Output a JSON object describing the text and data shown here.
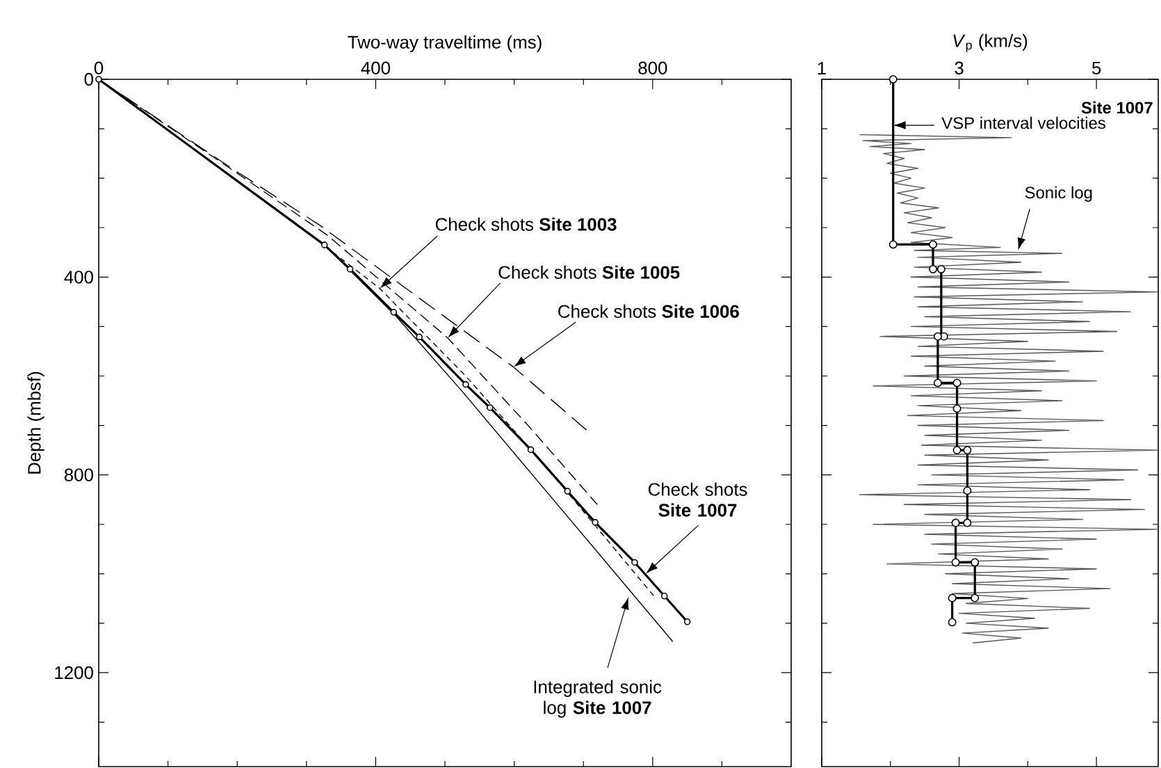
{
  "chart_data": [
    {
      "type": "line",
      "xlabel": "Two-way traveltime (ms)",
      "ylabel": "Depth (mbsf)",
      "xlim": [
        0,
        1000
      ],
      "ylim": [
        1390,
        0
      ],
      "xticks": [
        0,
        {
          "value": 100,
          "label": null
        },
        {
          "value": 200,
          "label": null
        },
        {
          "value": 300,
          "label": null
        },
        400,
        {
          "value": 500,
          "label": null
        },
        {
          "value": 600,
          "label": null
        },
        {
          "value": 700,
          "label": null
        },
        800,
        {
          "value": 900,
          "label": null
        }
      ],
      "yticks": [
        0,
        {
          "value": 100,
          "label": null
        },
        {
          "value": 200,
          "label": null
        },
        {
          "value": 300,
          "label": null
        },
        400,
        {
          "value": 500,
          "label": null
        },
        {
          "value": 600,
          "label": null
        },
        {
          "value": 700,
          "label": null
        },
        800,
        {
          "value": 900,
          "label": null
        },
        {
          "value": 1000,
          "label": null
        },
        {
          "value": 1100,
          "label": null
        },
        1200,
        {
          "value": 1300,
          "label": null
        }
      ],
      "series": [
        {
          "color": "#000000",
          "line_style": "dashed",
          "x": [
            0,
            320,
            406,
            530,
            650,
            803
          ],
          "values": [
            0,
            330,
            423,
            600,
            790,
            1047
          ]
        },
        {
          "color": "#000000",
          "line_style": "dashed",
          "x": [
            0,
            200,
            330,
            504,
            620,
            720
          ],
          "values": [
            0,
            190,
            315,
            523,
            700,
            860
          ]
        },
        {
          "color": "#000000",
          "line_style": "dashed",
          "x": [
            0,
            190,
            319,
            599,
            710
          ],
          "values": [
            0,
            178,
            295,
            582,
            716
          ]
        },
        {
          "color": "#000000",
          "line_style": "solid",
          "x": [
            0,
            326,
            430,
            523,
            829
          ],
          "values": [
            0,
            335,
            480,
            628,
            1137
          ]
        },
        {
          "color": "#000000",
          "line_style": "solid",
          "marker": "circle",
          "x": [
            0,
            326,
            363,
            426,
            463,
            530,
            565,
            624,
            677,
            717,
            774,
            817,
            850
          ],
          "values": [
            0,
            335,
            384,
            471,
            521,
            617,
            664,
            749,
            833,
            896,
            977,
            1045,
            1097
          ]
        }
      ],
      "annotations": [
        {
          "text": "Check shots **Site 1003**",
          "x": 406,
          "y": 423
        },
        {
          "text": "Check shots **Site 1005**",
          "x": 504,
          "y": 523
        },
        {
          "text": "Check shots **Site 1006**",
          "x": 599,
          "y": 582
        },
        {
          "text": "Check shots **Site 1007**",
          "x": 790,
          "y": 1000
        },
        {
          "text": "Integrated sonic log **Site 1007**",
          "x": 765,
          "y": 1047
        }
      ]
    },
    {
      "type": "line",
      "xlabel": "*V*$_{p}$ (km/s)",
      "tick_labels": "x",
      "xlim": [
        1,
        5.9
      ],
      "ylim": [
        1390,
        0
      ],
      "xticks": [
        1,
        {
          "value": 2,
          "label": null
        },
        3,
        {
          "value": 4,
          "label": null
        },
        5
      ],
      "yticks": [
        0,
        {
          "value": 100,
          "label": null
        },
        {
          "value": 200,
          "label": null
        },
        {
          "value": 300,
          "label": null
        },
        400,
        {
          "value": 500,
          "label": null
        },
        {
          "value": 600,
          "label": null
        },
        {
          "value": 700,
          "label": null
        },
        800,
        {
          "value": 900,
          "label": null
        },
        {
          "value": 1000,
          "label": null
        },
        {
          "value": 1100,
          "label": null
        },
        1200,
        {
          "value": 1300,
          "label": null
        }
      ],
      "series": [
        {
          "color": "#555555",
          "line_style": "solid",
          "x": [
            1.55,
            3.76,
            1.6,
            2.3,
            1.7,
            2.5,
            1.9,
            2.2,
            1.95,
            2.4,
            2.0,
            2.3,
            2.05,
            2.5,
            2.1,
            2.4,
            2.15,
            2.7,
            2.2,
            2.6,
            2.25,
            2.8,
            2.3,
            2.9,
            2.3,
            3.6,
            2.35,
            4.5,
            2.4,
            3.9,
            2.35,
            4.2,
            2.3,
            4.6,
            2.4,
            5.9,
            2.35,
            4.8,
            2.4,
            5.5,
            2.5,
            4.9,
            2.3,
            5.3,
            1.85,
            4.0,
            2.4,
            5.1,
            2.3,
            4.4,
            2.5,
            4.6,
            2.2,
            5.0,
            1.75,
            4.2,
            2.3,
            4.5,
            2.4,
            3.9,
            2.25,
            5.1,
            2.4,
            4.6,
            2.5,
            4.2,
            2.45,
            5.9,
            2.5,
            4.3,
            2.4,
            5.6,
            2.6,
            5.4,
            2.4,
            4.9,
            1.55,
            5.5,
            2.2,
            5.7,
            2.5,
            4.8,
            1.75,
            5.9,
            2.5,
            5.0,
            2.6,
            4.5,
            2.7,
            4.3,
            1.95,
            5.0,
            2.8,
            4.6,
            2.9,
            5.2,
            2.9,
            4.0,
            3.1,
            4.9,
            3.0,
            4.1,
            3.1,
            4.3,
            3.05,
            3.9,
            3.2
          ],
          "values": [
            112,
            118,
            124,
            130,
            136,
            142,
            150,
            160,
            170,
            180,
            190,
            200,
            210,
            220,
            230,
            240,
            250,
            260,
            270,
            280,
            290,
            300,
            310,
            320,
            330,
            340,
            346,
            352,
            360,
            370,
            380,
            390,
            400,
            410,
            420,
            430,
            440,
            450,
            460,
            470,
            480,
            490,
            500,
            510,
            520,
            530,
            540,
            550,
            560,
            570,
            580,
            590,
            600,
            610,
            620,
            630,
            640,
            650,
            660,
            670,
            680,
            690,
            700,
            710,
            720,
            730,
            740,
            750,
            760,
            770,
            780,
            790,
            800,
            810,
            820,
            830,
            840,
            850,
            860,
            870,
            880,
            890,
            900,
            910,
            920,
            930,
            940,
            950,
            960,
            970,
            980,
            990,
            1000,
            1010,
            1020,
            1030,
            1040,
            1050,
            1060,
            1070,
            1080,
            1090,
            1100,
            1110,
            1120,
            1130,
            1140
          ]
        },
        {
          "color": "#000000",
          "line_style": "solid",
          "x": [
            2.04,
            2.04,
            2.62,
            2.62,
            2.74,
            2.74,
            2.69,
            2.69,
            2.97,
            2.97,
            3.12,
            3.12,
            2.95,
            2.95,
            3.23,
            3.23,
            2.9,
            2.9
          ],
          "values": [
            0,
            334,
            334,
            384,
            384,
            520,
            520,
            614,
            614,
            750,
            750,
            897,
            897,
            977,
            977,
            1049,
            1049,
            1098
          ]
        },
        {
          "type": "scatter",
          "color": "#000000",
          "marker": "circle",
          "x": [
            2.04,
            2.04,
            2.62,
            2.62,
            2.74,
            2.78,
            2.69,
            2.69,
            2.97,
            2.97,
            2.97,
            3.12,
            3.12,
            3.12,
            2.95,
            2.95,
            3.23,
            3.23,
            2.9,
            2.9
          ],
          "values": [
            0,
            334,
            334,
            384,
            384,
            520,
            520,
            614,
            614,
            666,
            750,
            750,
            832,
            897,
            897,
            977,
            977,
            1049,
            1049,
            1098
          ]
        }
      ],
      "annotations": [
        "Site 1007",
        {
          "text": "VSP interval velocities",
          "x": 2.04,
          "y": 93
        },
        {
          "text": "Sonic log",
          "x": 3.86,
          "y": 346
        }
      ]
    }
  ]
}
